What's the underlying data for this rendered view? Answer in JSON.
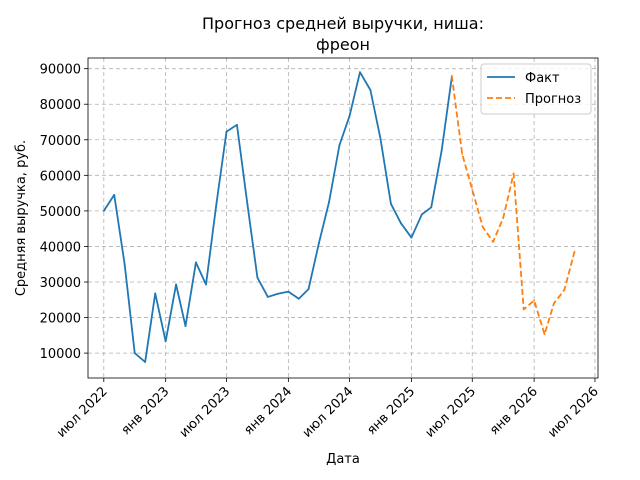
{
  "chart_data": {
    "type": "line",
    "title_line1": "Прогноз средней выручки, ниша:",
    "title_line2": "фреон",
    "xlabel": "Дата",
    "ylabel": "Средняя выручка, руб.",
    "ylim": [
      3000,
      93000
    ],
    "yticks": [
      10000,
      20000,
      30000,
      40000,
      50000,
      60000,
      70000,
      80000,
      90000
    ],
    "xlim": [
      "2022-05-15",
      "2026-07-10"
    ],
    "xticks": [
      {
        "date": "2022-07-01",
        "label": "июл 2022"
      },
      {
        "date": "2023-01-01",
        "label": "янв 2023"
      },
      {
        "date": "2023-07-01",
        "label": "июл 2023"
      },
      {
        "date": "2024-01-01",
        "label": "янв 2024"
      },
      {
        "date": "2024-07-01",
        "label": "июл 2024"
      },
      {
        "date": "2025-01-01",
        "label": "янв 2025"
      },
      {
        "date": "2025-07-01",
        "label": "июл 2025"
      },
      {
        "date": "2026-01-01",
        "label": "янв 2026"
      },
      {
        "date": "2026-07-01",
        "label": "июл 2026"
      }
    ],
    "grid": true,
    "legend_position": "top-right",
    "series": [
      {
        "name": "Факт",
        "color": "#1f77b4",
        "style": "solid",
        "points": [
          [
            "2022-07-01",
            50000
          ],
          [
            "2022-08-01",
            54500
          ],
          [
            "2022-09-01",
            35000
          ],
          [
            "2022-10-01",
            10000
          ],
          [
            "2022-11-01",
            7500
          ],
          [
            "2022-12-01",
            26800
          ],
          [
            "2023-01-01",
            13300
          ],
          [
            "2023-02-01",
            29300
          ],
          [
            "2023-03-01",
            17600
          ],
          [
            "2023-04-01",
            35500
          ],
          [
            "2023-05-01",
            29300
          ],
          [
            "2023-06-01",
            52000
          ],
          [
            "2023-07-01",
            72300
          ],
          [
            "2023-08-01",
            74200
          ],
          [
            "2023-09-01",
            52000
          ],
          [
            "2023-10-01",
            31200
          ],
          [
            "2023-11-01",
            25800
          ],
          [
            "2023-12-01",
            26700
          ],
          [
            "2024-01-01",
            27300
          ],
          [
            "2024-02-01",
            25300
          ],
          [
            "2024-03-01",
            28000
          ],
          [
            "2024-04-01",
            41000
          ],
          [
            "2024-05-01",
            52500
          ],
          [
            "2024-06-01",
            68500
          ],
          [
            "2024-07-01",
            76700
          ],
          [
            "2024-08-01",
            89000
          ],
          [
            "2024-09-01",
            84000
          ],
          [
            "2024-10-01",
            70300
          ],
          [
            "2024-11-01",
            52000
          ],
          [
            "2024-12-01",
            46500
          ],
          [
            "2025-01-01",
            42500
          ],
          [
            "2025-02-01",
            49000
          ],
          [
            "2025-03-01",
            51000
          ],
          [
            "2025-04-01",
            67000
          ],
          [
            "2025-05-01",
            87500
          ]
        ]
      },
      {
        "name": "Прогноз",
        "color": "#ff7f0e",
        "style": "dashed",
        "points": [
          [
            "2025-05-01",
            88000
          ],
          [
            "2025-06-01",
            66000
          ],
          [
            "2025-07-01",
            56000
          ],
          [
            "2025-08-01",
            45500
          ],
          [
            "2025-09-01",
            41300
          ],
          [
            "2025-10-01",
            48000
          ],
          [
            "2025-11-01",
            60500
          ],
          [
            "2025-12-01",
            22300
          ],
          [
            "2026-01-01",
            24800
          ],
          [
            "2026-02-01",
            15300
          ],
          [
            "2026-03-01",
            24000
          ],
          [
            "2026-04-01",
            27800
          ],
          [
            "2026-05-01",
            38500
          ]
        ]
      }
    ]
  }
}
